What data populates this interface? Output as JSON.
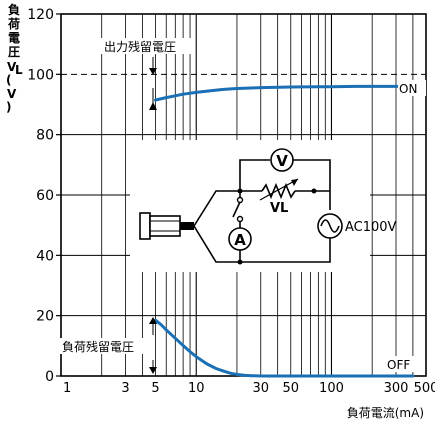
{
  "chart_data": {
    "type": "line",
    "title": "",
    "xlabel": "負荷電流(mA)",
    "ylabel_chars": [
      "負",
      "荷",
      "電",
      "圧",
      "V",
      "(",
      "V",
      ")"
    ],
    "xscale": "log",
    "xlim": [
      1,
      500
    ],
    "ylim": [
      0,
      120
    ],
    "x_tick_labels": [
      "1",
      "3",
      "5",
      "10",
      "30",
      "50",
      "100",
      "300",
      "500"
    ],
    "x_tick_values": [
      1,
      3,
      5,
      10,
      30,
      50,
      100,
      300,
      500
    ],
    "y_tick_values": [
      0,
      20,
      40,
      60,
      80,
      100,
      120
    ],
    "grid": true,
    "reference_line": {
      "y": 100,
      "style": "dashed"
    },
    "series": [
      {
        "name": "ON",
        "color": "#1a6fb5",
        "x": [
          5,
          6,
          7,
          8,
          10,
          13,
          16,
          20,
          30,
          50,
          80,
          100,
          150,
          200,
          300,
          400
        ],
        "y": [
          91.5,
          92.3,
          92.9,
          93.4,
          94.0,
          94.6,
          95.0,
          95.3,
          95.6,
          95.8,
          95.9,
          95.9,
          96.0,
          96.0,
          96.0,
          96.0
        ]
      },
      {
        "name": "OFF",
        "color": "#1a6fb5",
        "x": [
          5,
          5.5,
          6,
          7,
          8,
          9,
          10,
          12,
          14,
          16,
          18,
          20,
          23,
          26,
          30,
          40,
          60,
          100,
          200,
          400
        ],
        "y": [
          18.5,
          17.0,
          15.3,
          12.5,
          10.1,
          8.1,
          6.4,
          4.0,
          2.5,
          1.6,
          0.9,
          0.5,
          0.2,
          0.1,
          0.0,
          0.0,
          0.0,
          0.0,
          0.0,
          0.0
        ]
      }
    ],
    "annotations": {
      "output_residual": "出力残留電圧",
      "load_residual": "負荷残留電圧",
      "on_label": "ON",
      "off_label": "OFF"
    },
    "circuit": {
      "voltmeter": "V",
      "ammeter": "A",
      "load_label": "VL",
      "source_label": "AC100V"
    }
  }
}
